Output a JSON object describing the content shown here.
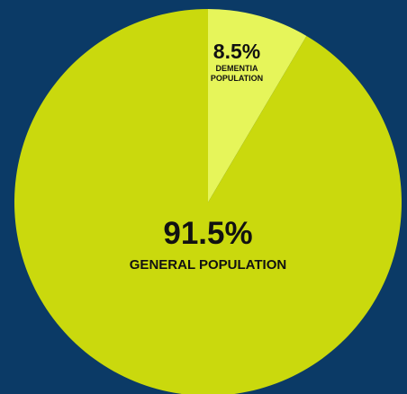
{
  "colors": {
    "background": "#0b3a66",
    "general": "#cad90d",
    "dementia": "#e6f55a",
    "text": "#111111"
  },
  "chart_data": {
    "type": "pie",
    "slices": [
      {
        "label_lines": [
          "DEMENTIA",
          "POPULATION"
        ],
        "value": 8.5,
        "value_text": "8.5%",
        "color": "#e6f55a"
      },
      {
        "label_lines": [
          "GENERAL POPULATION"
        ],
        "value": 91.5,
        "value_text": "91.5%",
        "color": "#cad90d"
      }
    ],
    "start_angle_deg": 0,
    "direction": "clockwise"
  }
}
